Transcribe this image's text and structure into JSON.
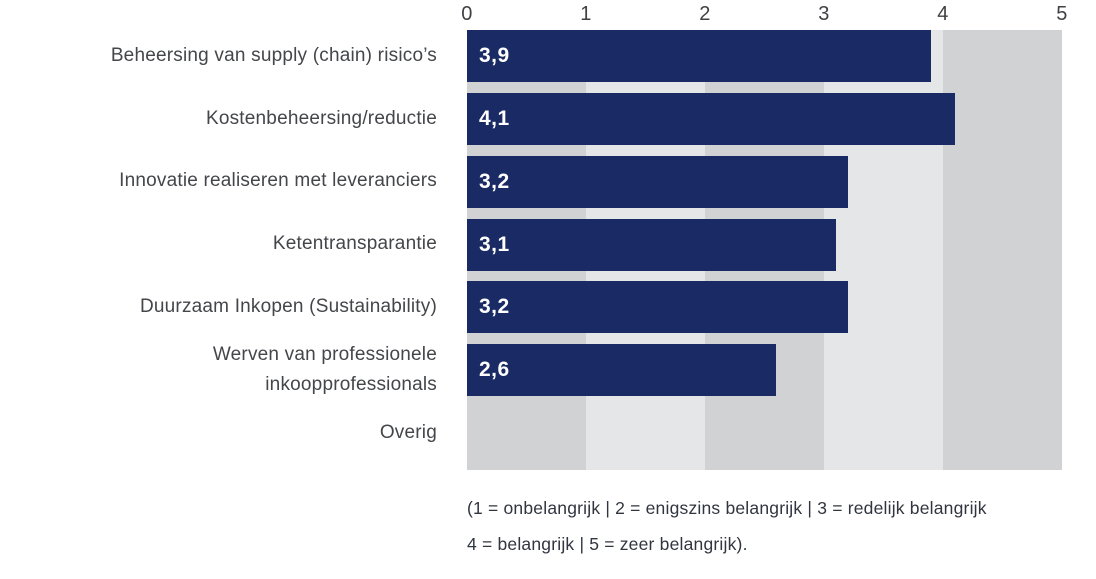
{
  "chart_data": {
    "type": "bar",
    "orientation": "horizontal",
    "categories": [
      "Beheersing van supply (chain) risico’s",
      "Kostenbeheersing/reductie",
      "Innovatie realiseren met leveranciers",
      "Ketentransparantie",
      "Duurzaam Inkopen (Sustainability)",
      "Werven van professionele inkoopprofessionals",
      "Overig"
    ],
    "values": [
      3.9,
      4.1,
      3.2,
      3.1,
      3.2,
      2.6,
      null
    ],
    "value_labels": [
      "3,9",
      "4,1",
      "3,2",
      "3,1",
      "3,2",
      "2,6",
      ""
    ],
    "title": "",
    "xlabel": "",
    "ylabel": "",
    "xlim": [
      0,
      5
    ],
    "x_ticks": [
      "0",
      "1",
      "2",
      "3",
      "4",
      "5"
    ],
    "grid": "striped-vertical-bands",
    "legend": null,
    "footnote_lines": [
      "(1 = onbelangrijk | 2 = enigszins belangrijk | 3 = redelijk belangrijk",
      "4 = belangrijk | 5 = zeer belangrijk)."
    ]
  },
  "colors": {
    "bar": "#1a2a64",
    "stripe_dark": "#d0d2d3",
    "stripe_light": "#e5e6e8",
    "label_text": "#44464a",
    "tick_text": "#3f4144",
    "value_text": "#ffffff",
    "footer_text": "#31353f",
    "background": "#ffffff"
  }
}
